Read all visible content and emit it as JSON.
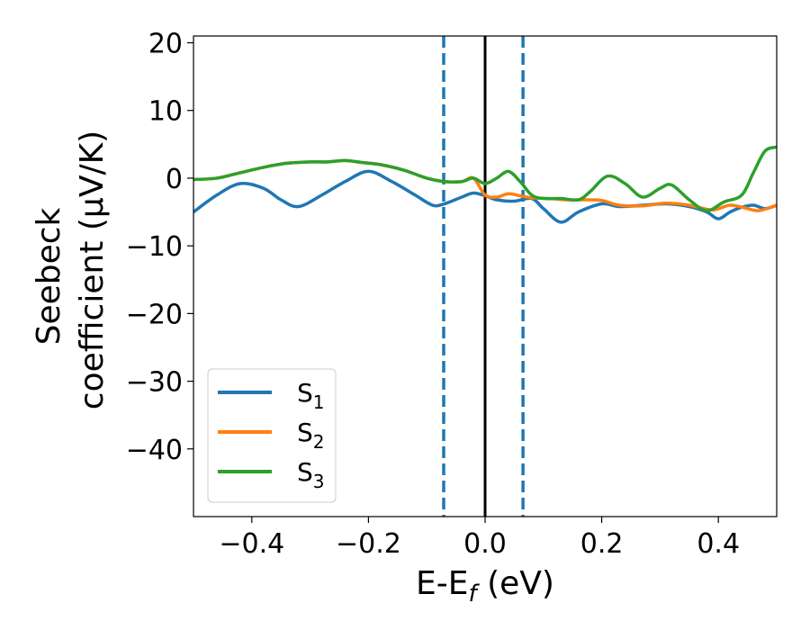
{
  "chart_data": {
    "type": "line",
    "xlabel": "E-E",
    "xlabel_sub": "f",
    "xlabel_unit": " (eV)",
    "ylabel_line1": "Seebeck",
    "ylabel_line2": "coefficient  (μV/K)",
    "xlim": [
      -0.5,
      0.5
    ],
    "ylim": [
      -50,
      21
    ],
    "x_ticks": [
      -0.4,
      -0.2,
      0.0,
      0.2,
      0.4
    ],
    "x_tick_labels": [
      "−0.4",
      "−0.2",
      "0.0",
      "0.2",
      "0.4"
    ],
    "y_ticks": [
      20,
      10,
      0,
      -10,
      -20,
      -30,
      -40
    ],
    "y_tick_labels": [
      "20",
      "10",
      "0",
      "−10",
      "−20",
      "−30",
      "−40"
    ],
    "legend_position": "lower-left",
    "vertical_lines": [
      {
        "x": -0.071,
        "style": "dashed",
        "color": "#1f77b4"
      },
      {
        "x": 0.0,
        "style": "solid",
        "color": "#000000"
      },
      {
        "x": 0.065,
        "style": "dashed",
        "color": "#1f77b4"
      }
    ],
    "series": [
      {
        "name": "S",
        "sub": "1",
        "color": "#1f77b4",
        "x": [
          -0.5,
          -0.46,
          -0.42,
          -0.38,
          -0.35,
          -0.32,
          -0.28,
          -0.24,
          -0.2,
          -0.16,
          -0.12,
          -0.09,
          -0.07,
          -0.04,
          -0.02,
          0.0,
          0.02,
          0.05,
          0.08,
          0.1,
          0.13,
          0.16,
          0.2,
          0.23,
          0.27,
          0.31,
          0.35,
          0.38,
          0.4,
          0.42,
          0.44,
          0.46,
          0.48,
          0.5
        ],
        "y": [
          -5.0,
          -2.5,
          -0.8,
          -1.5,
          -3.2,
          -4.2,
          -2.5,
          -0.5,
          1.0,
          -0.5,
          -2.5,
          -4.0,
          -3.8,
          -2.8,
          -2.2,
          -2.6,
          -3.2,
          -3.4,
          -3.0,
          -4.5,
          -6.5,
          -5.0,
          -3.8,
          -4.2,
          -4.0,
          -3.8,
          -4.2,
          -5.0,
          -6.0,
          -5.0,
          -4.3,
          -4.0,
          -4.5,
          -4.0
        ]
      },
      {
        "name": "S",
        "sub": "2",
        "color": "#ff7f0e",
        "x": [
          -0.5,
          -0.46,
          -0.42,
          -0.38,
          -0.34,
          -0.3,
          -0.27,
          -0.24,
          -0.21,
          -0.18,
          -0.14,
          -0.1,
          -0.07,
          -0.04,
          -0.02,
          0.0,
          0.02,
          0.04,
          0.06,
          0.08,
          0.11,
          0.14,
          0.17,
          0.2,
          0.23,
          0.27,
          0.31,
          0.35,
          0.39,
          0.42,
          0.45,
          0.47,
          0.5
        ],
        "y": [
          -0.2,
          0.0,
          0.8,
          1.6,
          2.2,
          2.4,
          2.4,
          2.6,
          2.3,
          2.0,
          1.2,
          0.0,
          -0.5,
          -0.5,
          0.0,
          -2.5,
          -2.8,
          -2.3,
          -2.6,
          -2.9,
          -3.0,
          -3.2,
          -3.2,
          -3.3,
          -4.0,
          -4.1,
          -3.7,
          -4.0,
          -4.7,
          -4.0,
          -4.5,
          -4.8,
          -4.0
        ]
      },
      {
        "name": "S",
        "sub": "3",
        "color": "#2ca02c",
        "x": [
          -0.5,
          -0.46,
          -0.42,
          -0.38,
          -0.34,
          -0.3,
          -0.27,
          -0.24,
          -0.21,
          -0.18,
          -0.14,
          -0.1,
          -0.07,
          -0.04,
          -0.02,
          0.0,
          0.02,
          0.04,
          0.06,
          0.08,
          0.1,
          0.13,
          0.16,
          0.18,
          0.21,
          0.24,
          0.27,
          0.3,
          0.32,
          0.35,
          0.38,
          0.41,
          0.44,
          0.46,
          0.48,
          0.5
        ],
        "y": [
          -0.2,
          0.0,
          0.8,
          1.6,
          2.2,
          2.4,
          2.4,
          2.6,
          2.3,
          2.0,
          1.2,
          0.0,
          -0.5,
          -0.5,
          0.0,
          -0.8,
          0.0,
          1.0,
          -0.5,
          -2.5,
          -3.0,
          -3.0,
          -3.2,
          -2.0,
          0.3,
          -0.8,
          -2.8,
          -1.5,
          -1.0,
          -3.2,
          -4.8,
          -3.5,
          -2.5,
          0.8,
          4.0,
          4.6
        ]
      }
    ]
  }
}
